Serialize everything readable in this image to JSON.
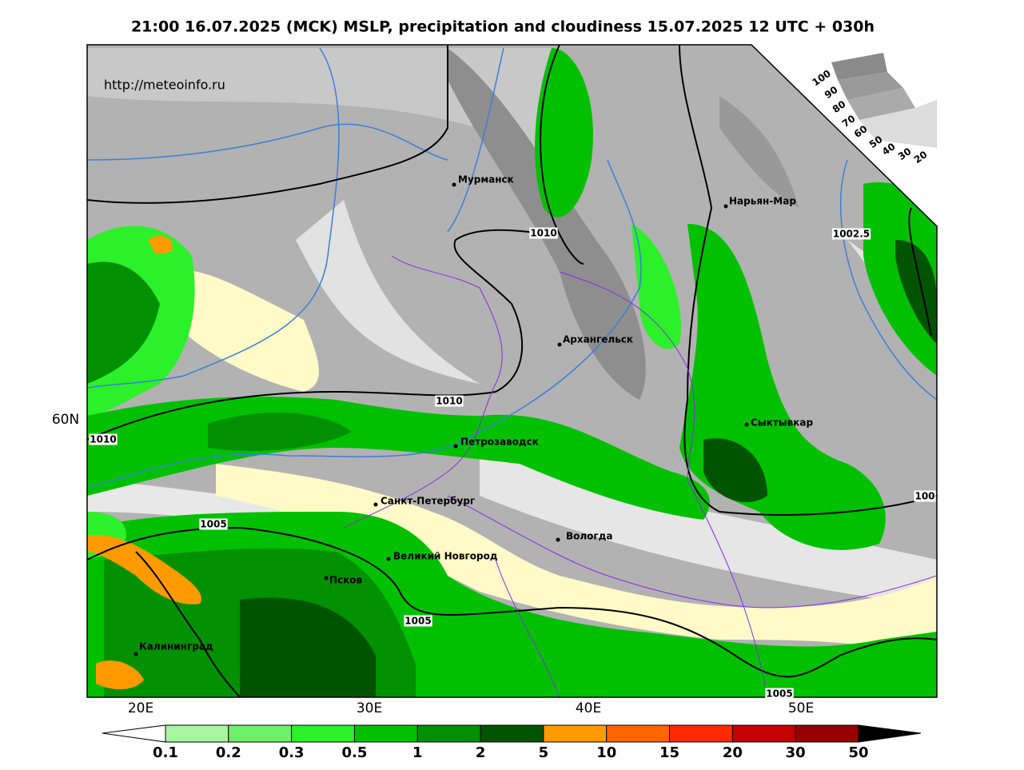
{
  "title": "21:00 16.07.2025 (MCK) MSLP, precipitation and cloudiness 15.07.2025 12 UTC + 030h",
  "source": "http://meteoinfo.ru",
  "cities": [
    "Мурманск",
    "Нарьян-Мар",
    "Архангельск",
    "Сыктывкар",
    "Петрозаводск",
    "Санкт-Петербург",
    "Вологда",
    "Великий Новгород",
    "Псков",
    "Калининград"
  ],
  "isobar_labels": [
    "1010",
    "1010",
    "1010",
    "1002.5",
    "1005",
    "1005",
    "1005",
    "100"
  ],
  "lat_labels": [
    "60N"
  ],
  "lon_labels": [
    "20E",
    "30E",
    "40E",
    "50E"
  ],
  "cloud_scale": [
    "100",
    "90",
    "80",
    "70",
    "60",
    "50",
    "40",
    "30",
    "20"
  ],
  "colorbar": {
    "labels": [
      "0.1",
      "0.2",
      "0.3",
      "0.5",
      "1",
      "2",
      "5",
      "10",
      "15",
      "20",
      "30",
      "50"
    ],
    "colors": [
      "#a8f5a0",
      "#6ef06a",
      "#2cf02a",
      "#00c000",
      "#009000",
      "#005400",
      "#ff9a00",
      "#ff6600",
      "#ff2a00",
      "#c40000",
      "#960000"
    ]
  }
}
